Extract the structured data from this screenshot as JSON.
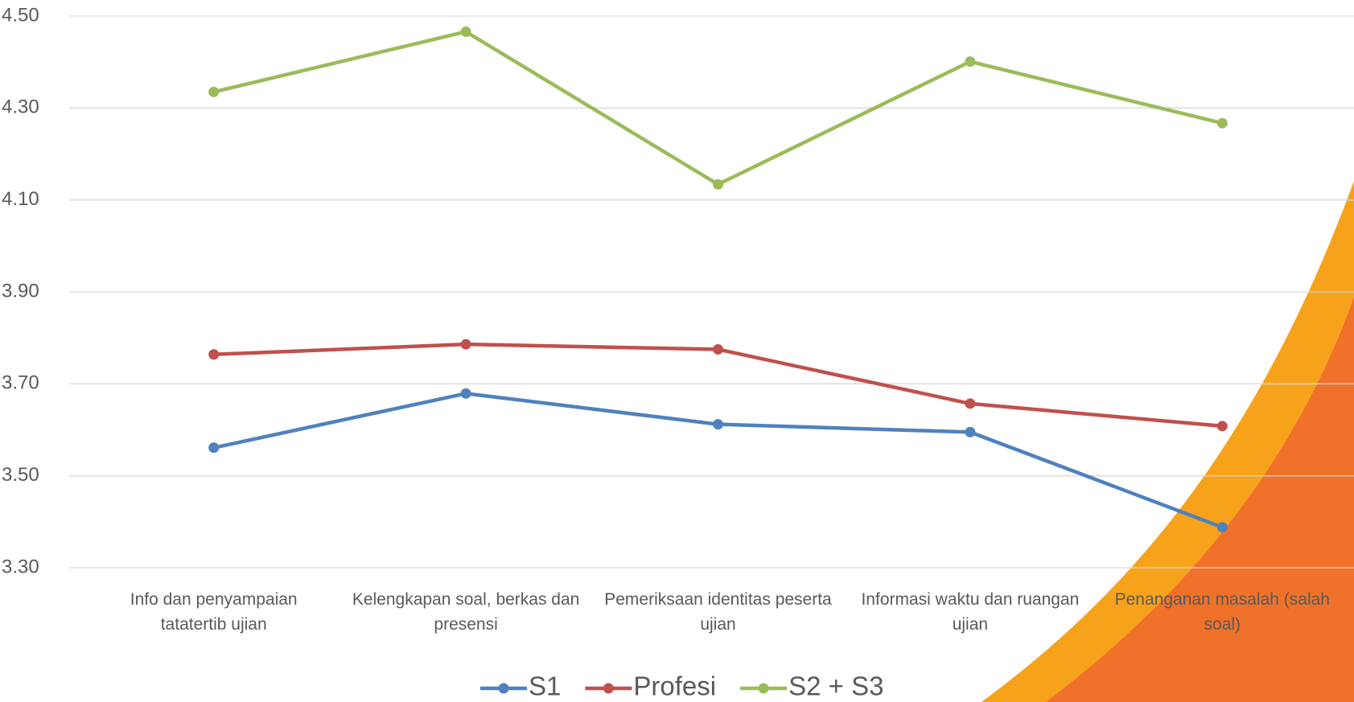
{
  "chart_data": {
    "type": "line",
    "categories": [
      "Info dan penyampaian tatatertib ujian",
      "Kelengkapan soal, berkas dan presensi",
      "Pemeriksaan identitas peserta ujian",
      "Informasi waktu dan ruangan ujian",
      "Penanganan masalah (salah soal)"
    ],
    "series": [
      {
        "name": "S1",
        "color": "#4f81bd",
        "values": [
          3.561,
          3.679,
          3.612,
          3.595,
          3.388
        ]
      },
      {
        "name": "Profesi",
        "color": "#c0504d",
        "values": [
          3.764,
          3.786,
          3.775,
          3.657,
          3.608
        ]
      },
      {
        "name": "S2 + S3",
        "color": "#9bbb59",
        "values": [
          4.335,
          4.466,
          4.134,
          4.401,
          4.267
        ]
      }
    ],
    "ylim": [
      3.3,
      4.5
    ],
    "yticks": [
      {
        "value": 3.3,
        "label": "3.30"
      },
      {
        "value": 3.5,
        "label": "3.50"
      },
      {
        "value": 3.7,
        "label": "3.70"
      },
      {
        "value": 3.9,
        "label": "3.90"
      },
      {
        "value": 4.1,
        "label": "4.10"
      },
      {
        "value": 4.3,
        "label": "4.30"
      },
      {
        "value": 4.5,
        "label": "4.50"
      }
    ],
    "grid": true,
    "legend": "bottom"
  }
}
